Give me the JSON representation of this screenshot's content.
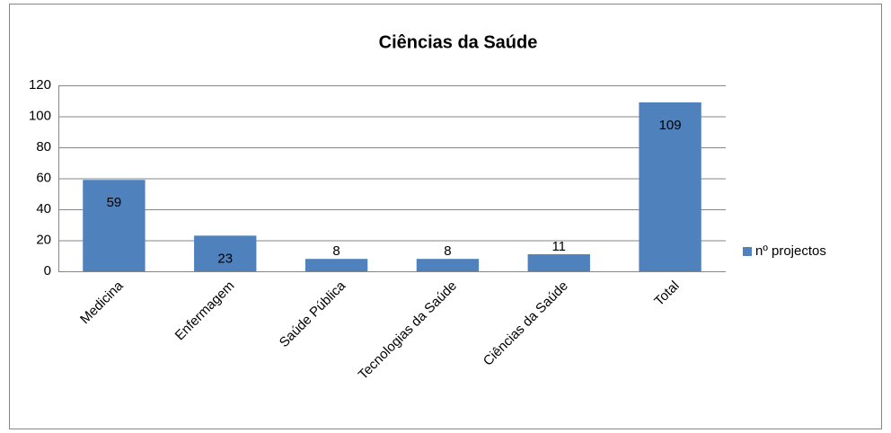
{
  "chart_data": {
    "type": "bar",
    "title": "Ciências da Saúde",
    "categories": [
      "Medicina",
      "Enfermagem",
      "Saúde Pública",
      "Tecnologias da Saúde",
      "Ciências da Saúde",
      "Total"
    ],
    "series": [
      {
        "name": "nº projectos",
        "color": "#4f81bd",
        "values": [
          59,
          23,
          8,
          8,
          11,
          109
        ]
      }
    ],
    "ylim": [
      0,
      120
    ],
    "yticks": [
      0,
      20,
      40,
      60,
      80,
      100,
      120
    ],
    "grid": true,
    "legend": "right"
  }
}
